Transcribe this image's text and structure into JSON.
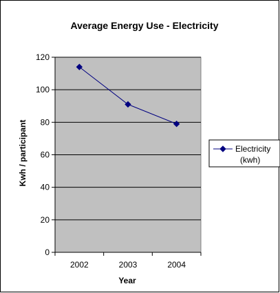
{
  "chart_data": {
    "type": "line",
    "title": "Average Energy Use - Electricity",
    "xlabel": "Year",
    "ylabel": "Kwh / participant",
    "categories": [
      "2002",
      "2003",
      "2004"
    ],
    "series": [
      {
        "name": "Electricity (kwh)",
        "name_lines": [
          "Electricity",
          "(kwh)"
        ],
        "values": [
          114,
          91,
          79
        ],
        "color": "#000080"
      }
    ],
    "ylim": [
      0,
      120
    ],
    "yticks": [
      "0",
      "20",
      "40",
      "60",
      "80",
      "100",
      "120"
    ],
    "grid": true,
    "plot_background": "#C0C0C0",
    "legend_position": "right",
    "marker": "diamond"
  }
}
